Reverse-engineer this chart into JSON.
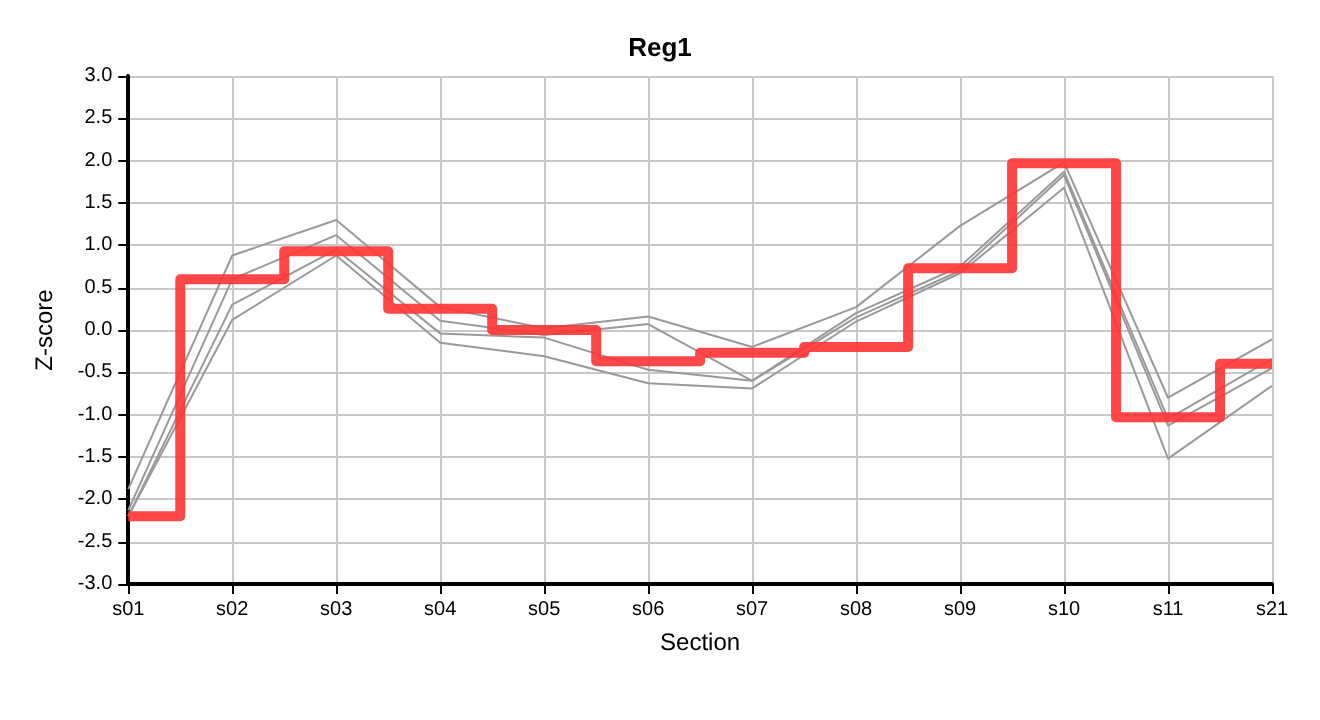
{
  "chart_data": {
    "type": "line",
    "title": "Reg1",
    "xlabel": "Section",
    "ylabel": "Z-score",
    "categories": [
      "s01",
      "s02",
      "s03",
      "s04",
      "s05",
      "s06",
      "s07",
      "s08",
      "s09",
      "s10",
      "s11",
      "s21"
    ],
    "ylim": [
      -3,
      3
    ],
    "yticks": [
      {
        "value": -3,
        "label": "-3.0"
      },
      {
        "value": -2.5,
        "label": "-2.5"
      },
      {
        "value": -2,
        "label": "-2.0"
      },
      {
        "value": -1.5,
        "label": "-1.5"
      },
      {
        "value": -1,
        "label": "-1.0"
      },
      {
        "value": -0.5,
        "label": "-0.5"
      },
      {
        "value": 0,
        "label": "0.0"
      },
      {
        "value": 0.5,
        "label": "0.5"
      },
      {
        "value": 1,
        "label": "1.0"
      },
      {
        "value": 1.5,
        "label": "1.5"
      },
      {
        "value": 2,
        "label": "2.0"
      },
      {
        "value": 2.5,
        "label": "2.5"
      },
      {
        "value": 3,
        "label": "3.0"
      }
    ],
    "grid": true,
    "marker": "none",
    "series": [
      {
        "color": "#999999",
        "values": [
          -1.88,
          0.88,
          1.3,
          0.27,
          0.02,
          0.16,
          -0.2,
          0.27,
          1.23,
          1.98,
          -0.8,
          -0.11
        ]
      },
      {
        "color": "#999999",
        "values": [
          -2.13,
          0.6,
          1.12,
          0.11,
          -0.06,
          0.07,
          -0.6,
          0.2,
          0.75,
          1.87,
          -1.05,
          -0.34
        ]
      },
      {
        "color": "#999999",
        "values": [
          -2.2,
          0.3,
          0.95,
          -0.04,
          -0.09,
          -0.47,
          -0.6,
          0.15,
          0.7,
          1.83,
          -1.13,
          -0.45
        ]
      },
      {
        "color": "#999999",
        "values": [
          -2.2,
          0.12,
          0.88,
          -0.15,
          -0.31,
          -0.63,
          -0.69,
          0.1,
          0.67,
          1.68,
          -1.52,
          -0.66
        ]
      },
      {
        "type": "step",
        "color": "#ff3333",
        "values": [
          -2.2,
          0.6,
          0.93,
          0.25,
          0,
          -0.37,
          -0.27,
          -0.2,
          0.73,
          1.97,
          -1.03,
          -0.4
        ]
      }
    ]
  }
}
